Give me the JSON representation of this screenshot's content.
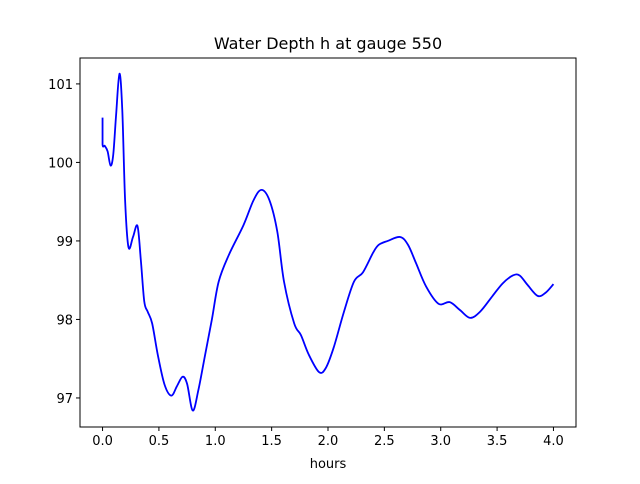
{
  "chart_data": {
    "type": "line",
    "title": "Water Depth h at gauge 550",
    "xlabel": "hours",
    "ylabel": "",
    "xlim": [
      -0.2,
      4.2
    ],
    "ylim": [
      96.63,
      101.33
    ],
    "xticks": [
      0.0,
      0.5,
      1.0,
      1.5,
      2.0,
      2.5,
      3.0,
      3.5,
      4.0
    ],
    "xtick_labels": [
      "0.0",
      "0.5",
      "1.0",
      "1.5",
      "2.0",
      "2.5",
      "3.0",
      "3.5",
      "4.0"
    ],
    "yticks": [
      97,
      98,
      99,
      100,
      101
    ],
    "ytick_labels": [
      "97",
      "98",
      "99",
      "100",
      "101"
    ],
    "grid": false,
    "series": [
      {
        "name": "h",
        "color": "#0000ff",
        "x": [
          0.0,
          0.0,
          0.02,
          0.045,
          0.071,
          0.095,
          0.12,
          0.15,
          0.175,
          0.2,
          0.23,
          0.27,
          0.31,
          0.34,
          0.37,
          0.4,
          0.44,
          0.49,
          0.55,
          0.61,
          0.66,
          0.71,
          0.75,
          0.8,
          0.85,
          0.91,
          0.97,
          1.03,
          1.12,
          1.25,
          1.34,
          1.41,
          1.48,
          1.55,
          1.61,
          1.7,
          1.76,
          1.83,
          1.92,
          1.98,
          2.05,
          2.14,
          2.23,
          2.31,
          2.4,
          2.45,
          2.53,
          2.64,
          2.71,
          2.78,
          2.87,
          2.98,
          3.08,
          3.17,
          3.26,
          3.35,
          3.46,
          3.55,
          3.64,
          3.7,
          3.77,
          3.86,
          3.93,
          4.0
        ],
        "y": [
          100.57,
          100.23,
          100.21,
          100.14,
          99.96,
          100.1,
          100.6,
          101.13,
          100.67,
          99.52,
          98.92,
          99.05,
          99.19,
          98.75,
          98.23,
          98.1,
          97.95,
          97.55,
          97.17,
          97.03,
          97.15,
          97.27,
          97.18,
          96.84,
          97.1,
          97.55,
          98.0,
          98.48,
          98.82,
          99.2,
          99.52,
          99.65,
          99.52,
          99.12,
          98.48,
          97.95,
          97.8,
          97.55,
          97.33,
          97.38,
          97.64,
          98.09,
          98.48,
          98.6,
          98.85,
          98.95,
          99.0,
          99.05,
          98.95,
          98.72,
          98.42,
          98.2,
          98.22,
          98.12,
          98.02,
          98.1,
          98.3,
          98.46,
          98.56,
          98.56,
          98.44,
          98.3,
          98.34,
          98.45
        ]
      }
    ]
  }
}
